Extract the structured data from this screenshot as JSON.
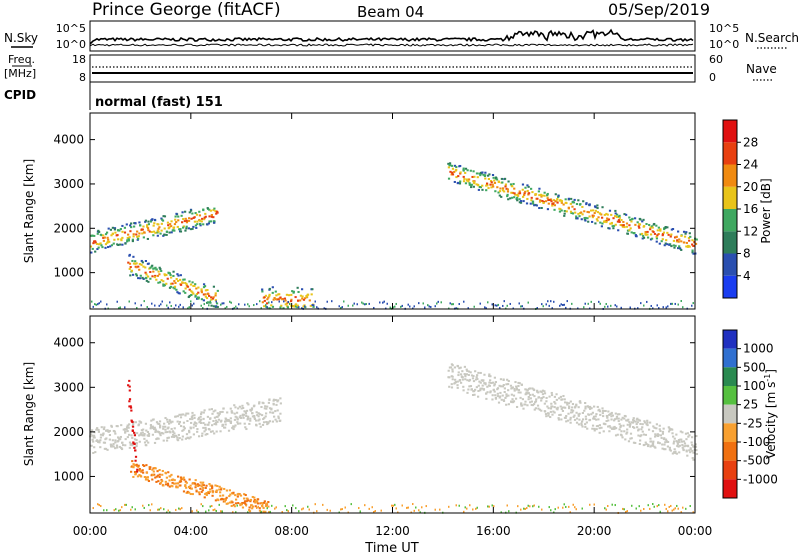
{
  "header": {
    "station": "Prince George (fitACF)",
    "beam": "Beam 04",
    "date": "05/Sep/2019"
  },
  "top_panels": {
    "nsky_label": "N.Sky",
    "nsearch_label": "N.Search",
    "left_ticks": [
      "10^5",
      "10^0"
    ],
    "right_ticks": [
      "10^5",
      "10^0"
    ],
    "freq_label_line1": "Freq.",
    "freq_label_line2": "[MHz]",
    "freq_ticks": [
      "18",
      "8"
    ],
    "nave_label": "Nave",
    "nave_ticks": [
      "60",
      "0"
    ],
    "cpid_label": "CPID",
    "cpid_text": "normal (fast) 151"
  },
  "chart_data": [
    {
      "type": "heatmap",
      "title": "",
      "xlabel": "",
      "ylabel": "Slant Range [km]",
      "x_ticks": [
        "00:00",
        "04:00",
        "08:00",
        "12:00",
        "16:00",
        "20:00",
        "00:00"
      ],
      "xlim_hours": [
        0,
        24
      ],
      "y_ticks": [
        1000,
        2000,
        3000,
        4000
      ],
      "ylim": [
        180,
        4600
      ],
      "colorbar": {
        "label": "Power [dB]",
        "ticks": [
          4,
          8,
          12,
          16,
          20,
          24,
          28
        ],
        "range": [
          0,
          32
        ],
        "colors": [
          "#1a3df0",
          "#2a4fb0",
          "#2e7d5a",
          "#3fa860",
          "#e8c41a",
          "#f08a10",
          "#e84010",
          "#e01010"
        ]
      },
      "features": [
        {
          "name": "band-a",
          "start_h": 0.0,
          "end_h": 5.0,
          "range_start_km": 1700,
          "range_end_km": 2350
        },
        {
          "name": "band-b",
          "start_h": 1.5,
          "end_h": 5.0,
          "range_start_km": 1200,
          "range_end_km": 450
        },
        {
          "name": "patch-c",
          "start_h": 6.8,
          "end_h": 8.8,
          "range_start_km": 400,
          "range_end_km": 400
        },
        {
          "name": "band-d",
          "start_h": 14.2,
          "end_h": 24.0,
          "range_start_km": 3300,
          "range_end_km": 1650
        }
      ]
    },
    {
      "type": "heatmap",
      "title": "",
      "xlabel": "Time UT",
      "ylabel": "Slant Range [km]",
      "x_ticks": [
        "00:00",
        "04:00",
        "08:00",
        "12:00",
        "16:00",
        "20:00",
        "00:00"
      ],
      "xlim_hours": [
        0,
        24
      ],
      "y_ticks": [
        1000,
        2000,
        3000,
        4000
      ],
      "ylim": [
        180,
        4600
      ],
      "colorbar": {
        "label": "Velocity [m s-1]",
        "label_main": "Velocity",
        "label_unit": "[m s",
        "label_sup": "-1",
        "label_close": "]",
        "ticks": [
          "1000",
          "500",
          "100",
          "25",
          "-25",
          "-100",
          "-500",
          "-1000"
        ],
        "colors": [
          "#2030c0",
          "#3070d0",
          "#2a8a50",
          "#56c040",
          "#c8c8c0",
          "#f8a030",
          "#f07010",
          "#e84010",
          "#e01010"
        ]
      },
      "features": [
        {
          "name": "grey-band-a",
          "start_h": 0.0,
          "end_h": 7.5,
          "range_start_km": 1800,
          "range_end_km": 2500
        },
        {
          "name": "red-streak",
          "start_h": 1.5,
          "end_h": 1.8,
          "range_start_km": 3000,
          "range_end_km": 1300
        },
        {
          "name": "orange-band",
          "start_h": 1.6,
          "end_h": 7.0,
          "range_start_km": 1200,
          "range_end_km": 300
        },
        {
          "name": "grey-band-d",
          "start_h": 14.2,
          "end_h": 24.0,
          "range_start_km": 3300,
          "range_end_km": 1650
        }
      ]
    }
  ]
}
